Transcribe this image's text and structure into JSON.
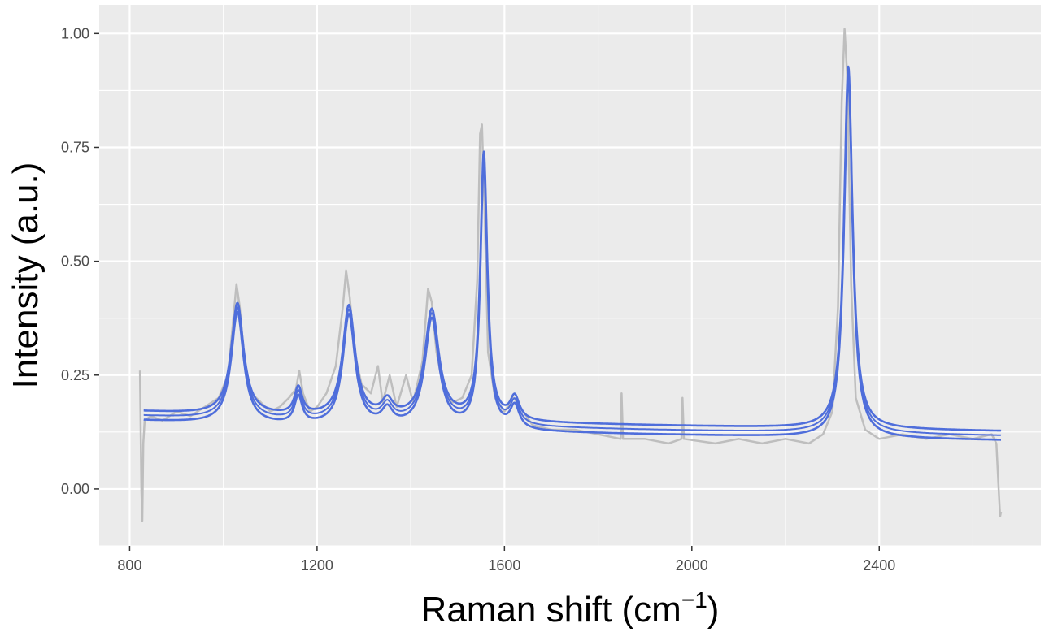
{
  "chart_data": {
    "type": "line",
    "xlabel": "Raman shift (cm",
    "xlabel_sup": "−1",
    "xlabel_end": ")",
    "ylabel": "Intensity (a.u.)",
    "xlim": [
      735,
      2745
    ],
    "ylim": [
      -0.125,
      1.063
    ],
    "x_ticks": [
      800,
      1200,
      1600,
      2000,
      2400
    ],
    "x_tick_labels": [
      "800",
      "1200",
      "1600",
      "2000",
      "2400"
    ],
    "y_ticks": [
      0,
      0.25,
      0.5,
      0.75,
      1.0
    ],
    "y_tick_labels": [
      "0.00",
      "0.25",
      "0.50",
      "0.75",
      "1.00"
    ],
    "grid": true,
    "panel_background": "#ebebeb",
    "grid_color": "#ffffff",
    "series": [
      {
        "role": "observed",
        "color": "#bebebe",
        "points": [
          [
            822,
            0.26
          ],
          [
            825,
            0.0
          ],
          [
            827,
            -0.07
          ],
          [
            829,
            0.1
          ],
          [
            832,
            0.15
          ],
          [
            845,
            0.16
          ],
          [
            870,
            0.15
          ],
          [
            900,
            0.17
          ],
          [
            930,
            0.16
          ],
          [
            960,
            0.18
          ],
          [
            990,
            0.2
          ],
          [
            1010,
            0.25
          ],
          [
            1020,
            0.36
          ],
          [
            1028,
            0.45
          ],
          [
            1035,
            0.4
          ],
          [
            1045,
            0.28
          ],
          [
            1060,
            0.21
          ],
          [
            1080,
            0.19
          ],
          [
            1100,
            0.17
          ],
          [
            1120,
            0.18
          ],
          [
            1140,
            0.2
          ],
          [
            1155,
            0.22
          ],
          [
            1162,
            0.26
          ],
          [
            1170,
            0.21
          ],
          [
            1185,
            0.17
          ],
          [
            1200,
            0.18
          ],
          [
            1220,
            0.21
          ],
          [
            1240,
            0.27
          ],
          [
            1255,
            0.4
          ],
          [
            1262,
            0.48
          ],
          [
            1270,
            0.42
          ],
          [
            1280,
            0.3
          ],
          [
            1295,
            0.23
          ],
          [
            1315,
            0.21
          ],
          [
            1330,
            0.27
          ],
          [
            1340,
            0.19
          ],
          [
            1355,
            0.25
          ],
          [
            1370,
            0.18
          ],
          [
            1390,
            0.25
          ],
          [
            1405,
            0.19
          ],
          [
            1425,
            0.28
          ],
          [
            1437,
            0.44
          ],
          [
            1445,
            0.41
          ],
          [
            1455,
            0.3
          ],
          [
            1470,
            0.22
          ],
          [
            1490,
            0.19
          ],
          [
            1510,
            0.2
          ],
          [
            1530,
            0.25
          ],
          [
            1542,
            0.46
          ],
          [
            1548,
            0.78
          ],
          [
            1552,
            0.8
          ],
          [
            1558,
            0.6
          ],
          [
            1565,
            0.3
          ],
          [
            1580,
            0.2
          ],
          [
            1600,
            0.17
          ],
          [
            1620,
            0.2
          ],
          [
            1640,
            0.17
          ],
          [
            1660,
            0.14
          ],
          [
            1700,
            0.13
          ],
          [
            1750,
            0.13
          ],
          [
            1800,
            0.12
          ],
          [
            1848,
            0.11
          ],
          [
            1850,
            0.21
          ],
          [
            1853,
            0.11
          ],
          [
            1900,
            0.11
          ],
          [
            1950,
            0.1
          ],
          [
            1978,
            0.11
          ],
          [
            1980,
            0.2
          ],
          [
            1983,
            0.11
          ],
          [
            2050,
            0.1
          ],
          [
            2100,
            0.11
          ],
          [
            2150,
            0.1
          ],
          [
            2200,
            0.11
          ],
          [
            2250,
            0.1
          ],
          [
            2280,
            0.12
          ],
          [
            2300,
            0.17
          ],
          [
            2312,
            0.4
          ],
          [
            2320,
            0.85
          ],
          [
            2326,
            1.01
          ],
          [
            2332,
            0.9
          ],
          [
            2340,
            0.45
          ],
          [
            2350,
            0.2
          ],
          [
            2370,
            0.13
          ],
          [
            2400,
            0.11
          ],
          [
            2450,
            0.12
          ],
          [
            2500,
            0.11
          ],
          [
            2550,
            0.12
          ],
          [
            2600,
            0.11
          ],
          [
            2640,
            0.12
          ],
          [
            2650,
            0.1
          ],
          [
            2655,
            0.0
          ],
          [
            2658,
            -0.06
          ],
          [
            2660,
            -0.05
          ]
        ]
      },
      {
        "role": "fit",
        "color": "#4f6edb",
        "baseline": {
          "a": 0.11,
          "b": 0.05,
          "c": 0.0045,
          "peak_threshold": 1650,
          "late_floor": 0.095
        },
        "offsets": [
          -0.01,
          0.0,
          0.01
        ],
        "peaks": [
          {
            "center": 1030,
            "height": 0.245,
            "hwhm": 16
          },
          {
            "center": 1160,
            "height": 0.06,
            "hwhm": 10
          },
          {
            "center": 1268,
            "height": 0.245,
            "hwhm": 16
          },
          {
            "center": 1350,
            "height": 0.035,
            "hwhm": 14
          },
          {
            "center": 1445,
            "height": 0.24,
            "hwhm": 18
          },
          {
            "center": 1556,
            "height": 0.585,
            "hwhm": 9
          },
          {
            "center": 1622,
            "height": 0.05,
            "hwhm": 12
          },
          {
            "center": 2334,
            "height": 0.795,
            "hwhm": 11
          }
        ],
        "x_range": [
          830,
          2660
        ]
      }
    ]
  }
}
